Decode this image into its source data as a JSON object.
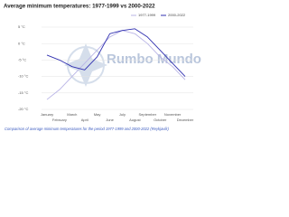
{
  "chart_data": {
    "type": "line",
    "title": "Average minimum temperatures: 1977-1999 vs 2000-2022",
    "caption": "Comparison of average minimum temperatures for the period 1977-1999 and 2000-2022 (Reykjavík)",
    "watermark": "Rumbo Mundo",
    "categories": [
      "January",
      "February",
      "March",
      "April",
      "May",
      "June",
      "July",
      "August",
      "September",
      "October",
      "November",
      "December"
    ],
    "series": [
      {
        "name": "1977-1999",
        "color": "#b9b4e6",
        "values": [
          -17,
          -14,
          -10,
          -6,
          -2,
          2,
          4,
          3,
          0,
          -4,
          -7,
          -11
        ]
      },
      {
        "name": "2000-2022",
        "color": "#3030b0",
        "values": [
          -3.5,
          -5,
          -7,
          -8,
          -4,
          3,
          4,
          4.5,
          2,
          -2,
          -6,
          -10
        ]
      }
    ],
    "ylim": [
      -20,
      5
    ],
    "yticks": [
      {
        "value": -20,
        "label": "-20 °C"
      },
      {
        "value": -15,
        "label": "-15 °C"
      },
      {
        "value": -10,
        "label": "-10 °C"
      },
      {
        "value": -5,
        "label": "-5 °C"
      },
      {
        "value": 0,
        "label": "0 °C"
      },
      {
        "value": 5,
        "label": "5 °C"
      }
    ],
    "grid": true,
    "legend": "top-right"
  }
}
